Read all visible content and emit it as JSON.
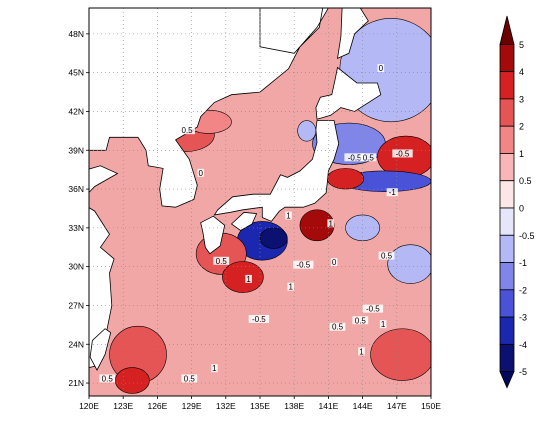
{
  "map": {
    "lon_ticks": [
      "120E",
      "123E",
      "126E",
      "129E",
      "132E",
      "135E",
      "138E",
      "141E",
      "144E",
      "147E",
      "150E"
    ],
    "lat_ticks": [
      "21N",
      "24N",
      "27N",
      "30N",
      "33N",
      "36N",
      "39N",
      "42N",
      "45N",
      "48N"
    ],
    "gridlines": true,
    "contour_labels": [
      {
        "text": "0.5",
        "lon": 128.6,
        "lat": 40.4
      },
      {
        "text": "0",
        "lon": 129.8,
        "lat": 37.1
      },
      {
        "text": "-0.5",
        "lon": 143.3,
        "lat": 38.3
      },
      {
        "text": "0.5",
        "lon": 144.5,
        "lat": 38.3
      },
      {
        "text": "-0.5",
        "lon": 147.5,
        "lat": 38.6
      },
      {
        "text": "0",
        "lon": 145.6,
        "lat": 45.2
      },
      {
        "text": "-1",
        "lon": 146.6,
        "lat": 35.6
      },
      {
        "text": "1",
        "lon": 137.5,
        "lat": 33.8
      },
      {
        "text": "1",
        "lon": 141.2,
        "lat": 33.2
      },
      {
        "text": "-0.5",
        "lon": 138.8,
        "lat": 30.0
      },
      {
        "text": "0",
        "lon": 141.5,
        "lat": 30.2
      },
      {
        "text": "0.5",
        "lon": 146.1,
        "lat": 30.7
      },
      {
        "text": "0.5",
        "lon": 131.6,
        "lat": 30.3
      },
      {
        "text": "-0.5",
        "lon": 144.9,
        "lat": 26.6
      },
      {
        "text": "-0.5",
        "lon": 134.9,
        "lat": 25.8
      },
      {
        "text": "0.5",
        "lon": 141.8,
        "lat": 25.2
      },
      {
        "text": "0.5",
        "lon": 143.8,
        "lat": 25.7
      },
      {
        "text": "1",
        "lon": 145.8,
        "lat": 25.4
      },
      {
        "text": "1",
        "lon": 134.0,
        "lat": 28.9
      },
      {
        "text": "1",
        "lon": 137.7,
        "lat": 28.3
      },
      {
        "text": "1",
        "lon": 143.9,
        "lat": 23.3
      },
      {
        "text": "1",
        "lon": 131.0,
        "lat": 22.0
      },
      {
        "text": "0.5",
        "lon": 121.6,
        "lat": 21.2
      },
      {
        "text": "0.5",
        "lon": 128.8,
        "lat": 21.2
      }
    ]
  },
  "colorbar": {
    "labels": [
      "5",
      "4",
      "3",
      "2",
      "1",
      "0.5",
      "0",
      "-0.5",
      "-1",
      "-2",
      "-3",
      "-4",
      "-5"
    ],
    "colors": [
      "#6b0000",
      "#a40a0a",
      "#d52121",
      "#e65555",
      "#f28585",
      "#f9b6b6",
      "#fde6e6",
      "#e6e6fb",
      "#b4b8f4",
      "#7f86e8",
      "#4a53d8",
      "#1c27b0",
      "#0a1170",
      "#00095a"
    ]
  },
  "palette": {
    "ocean_base": "#f2a7a7",
    "land": "#ffffff",
    "coast": "#000000"
  },
  "patches": [
    {
      "lon": 139.1,
      "lat": 40.5,
      "rx": 0.8,
      "ry": 0.8,
      "level": -1
    },
    {
      "lon": 146.5,
      "lat": 45.2,
      "rx": 4.5,
      "ry": 4.0,
      "level": -1
    },
    {
      "lon": 142.8,
      "lat": 39.5,
      "rx": 3.2,
      "ry": 1.6,
      "level": -2
    },
    {
      "lon": 147.8,
      "lat": 38.5,
      "rx": 2.5,
      "ry": 1.6,
      "level": 3
    },
    {
      "lon": 146.0,
      "lat": 36.6,
      "rx": 4.0,
      "ry": 0.8,
      "level": -3
    },
    {
      "lon": 142.5,
      "lat": 36.8,
      "rx": 1.6,
      "ry": 0.8,
      "level": 3
    },
    {
      "lon": 135.2,
      "lat": 32.0,
      "rx": 2.2,
      "ry": 1.5,
      "level": -4
    },
    {
      "lon": 136.2,
      "lat": 32.2,
      "rx": 1.2,
      "ry": 0.8,
      "level": -5
    },
    {
      "lon": 140.0,
      "lat": 33.2,
      "rx": 1.5,
      "ry": 1.2,
      "level": 4
    },
    {
      "lon": 144.0,
      "lat": 33.0,
      "rx": 1.5,
      "ry": 1.0,
      "level": -1
    },
    {
      "lon": 131.6,
      "lat": 31.0,
      "rx": 2.2,
      "ry": 1.6,
      "level": 2
    },
    {
      "lon": 133.5,
      "lat": 29.2,
      "rx": 1.8,
      "ry": 1.2,
      "level": 3
    },
    {
      "lon": 148.2,
      "lat": 30.2,
      "rx": 2.0,
      "ry": 1.5,
      "level": -1
    },
    {
      "lon": 147.5,
      "lat": 23.2,
      "rx": 2.8,
      "ry": 2.0,
      "level": 2
    },
    {
      "lon": 128.5,
      "lat": 40.2,
      "rx": 2.5,
      "ry": 1.3,
      "level": 2
    },
    {
      "lon": 130.5,
      "lat": 41.2,
      "rx": 2.0,
      "ry": 0.9,
      "level": 1
    },
    {
      "lon": 124.3,
      "lat": 23.2,
      "rx": 2.5,
      "ry": 2.2,
      "level": 2
    },
    {
      "lon": 123.8,
      "lat": 21.2,
      "rx": 1.5,
      "ry": 1.0,
      "level": 3
    }
  ]
}
